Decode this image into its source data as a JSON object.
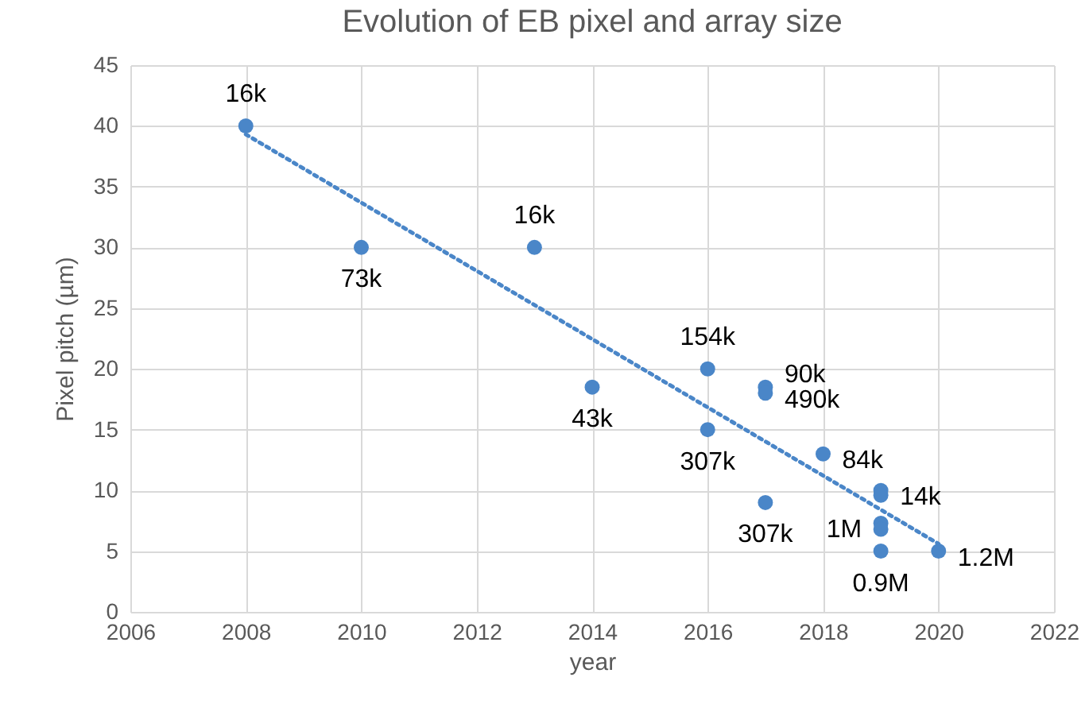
{
  "chart_data": {
    "type": "scatter",
    "title": "Evolution of EB pixel and array size",
    "xlabel": "year",
    "ylabel": "Pixel pitch (µm)",
    "xlim": [
      2006,
      2022
    ],
    "xticks": [
      2006,
      2008,
      2010,
      2012,
      2014,
      2016,
      2018,
      2020,
      2022
    ],
    "ylim": [
      0,
      45
    ],
    "yticks": [
      0,
      5,
      10,
      15,
      20,
      25,
      30,
      35,
      40,
      45
    ],
    "grid": true,
    "series": [
      {
        "type": "scatter",
        "marker": "circle",
        "color": "#4a86c8",
        "x": [
          2008,
          2010,
          2013,
          2014,
          2016,
          2016,
          2017,
          2017,
          2017,
          2018,
          2019,
          2019,
          2019,
          2019,
          2019,
          2020
        ],
        "values": [
          40,
          30,
          30,
          18.5,
          20,
          15,
          18.5,
          18,
          9,
          13,
          10,
          9.6,
          7.3,
          6.8,
          5,
          5
        ]
      },
      {
        "type": "line",
        "color": "#4a86c8",
        "line_style": "dotted",
        "marker": "none",
        "x": [
          2008,
          2020
        ],
        "values": [
          39.3,
          5.6
        ]
      }
    ],
    "annotations": [
      {
        "text": "16k",
        "x": 2008,
        "y": 40
      },
      {
        "text": "73k",
        "x": 2010,
        "y": 30
      },
      {
        "text": "16k",
        "x": 2013,
        "y": 30
      },
      {
        "text": "43k",
        "x": 2014,
        "y": 18.5
      },
      {
        "text": "154k",
        "x": 2016,
        "y": 20
      },
      {
        "text": "307k",
        "x": 2016,
        "y": 15
      },
      {
        "text": "90k",
        "x": 2017,
        "y": 18.5
      },
      {
        "text": "490k",
        "x": 2017,
        "y": 18
      },
      {
        "text": "307k",
        "x": 2017,
        "y": 9
      },
      {
        "text": "84k",
        "x": 2018,
        "y": 13
      },
      {
        "text": "14k",
        "x": 2019,
        "y": 10
      },
      {
        "text": "1M",
        "x": 2019,
        "y": 7.3
      },
      {
        "text": "0.9M",
        "x": 2019,
        "y": 5
      },
      {
        "text": "1.2M",
        "x": 2020,
        "y": 5
      }
    ]
  }
}
